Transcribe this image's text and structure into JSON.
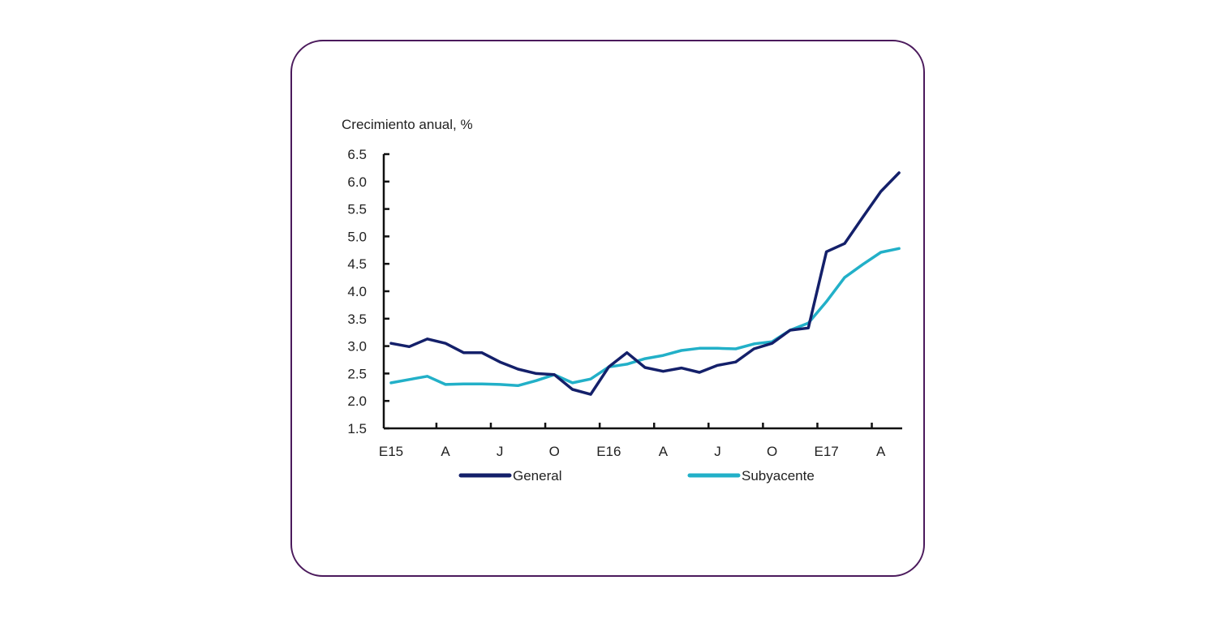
{
  "chart_data": {
    "type": "line",
    "title": "",
    "ylabel": "Crecimiento anual, %",
    "xlabel": "",
    "ylim": [
      1.5,
      6.5
    ],
    "yticks": [
      "6.5",
      "6.0",
      "5.5",
      "5.0",
      "4.5",
      "4.0",
      "3.5",
      "3.0",
      "2.5",
      "2.0",
      "1.5"
    ],
    "ytick_values": [
      6.5,
      6.0,
      5.5,
      5.0,
      4.5,
      4.0,
      3.5,
      3.0,
      2.5,
      2.0,
      1.5
    ],
    "xtick_labels": [
      "E15",
      "A",
      "J",
      "O",
      "E16",
      "A",
      "J",
      "O",
      "E17",
      "A"
    ],
    "xtick_month_index": [
      0,
      3,
      6,
      9,
      12,
      15,
      18,
      21,
      24,
      27
    ],
    "x": [
      "2015-01",
      "2015-02",
      "2015-03",
      "2015-04",
      "2015-05",
      "2015-06",
      "2015-07",
      "2015-08",
      "2015-09",
      "2015-10",
      "2015-11",
      "2015-12",
      "2016-01",
      "2016-02",
      "2016-03",
      "2016-04",
      "2016-05",
      "2016-06",
      "2016-07",
      "2016-08",
      "2016-09",
      "2016-10",
      "2016-11",
      "2016-12",
      "2017-01",
      "2017-02",
      "2017-03",
      "2017-04",
      "2017-05"
    ],
    "series": [
      {
        "name": "General",
        "color": "#14206a",
        "values": [
          3.05,
          2.99,
          3.13,
          3.05,
          2.88,
          2.88,
          2.71,
          2.58,
          2.5,
          2.48,
          2.21,
          2.12,
          2.62,
          2.88,
          2.61,
          2.54,
          2.6,
          2.52,
          2.65,
          2.71,
          2.95,
          3.05,
          3.29,
          3.33,
          4.72,
          4.87,
          5.35,
          5.82,
          6.16
        ]
      },
      {
        "name": "Subyacente",
        "color": "#22b0c8",
        "values": [
          2.33,
          2.39,
          2.45,
          2.3,
          2.31,
          2.31,
          2.3,
          2.28,
          2.37,
          2.48,
          2.33,
          2.4,
          2.62,
          2.67,
          2.77,
          2.83,
          2.92,
          2.96,
          2.96,
          2.95,
          3.04,
          3.08,
          3.29,
          3.42,
          3.81,
          4.25,
          4.49,
          4.71,
          4.78
        ]
      }
    ],
    "legend": {
      "placement": "bottom",
      "entries": [
        "General",
        "Subyacente"
      ]
    },
    "grid": false
  },
  "frame_color": "#4b1a5c"
}
